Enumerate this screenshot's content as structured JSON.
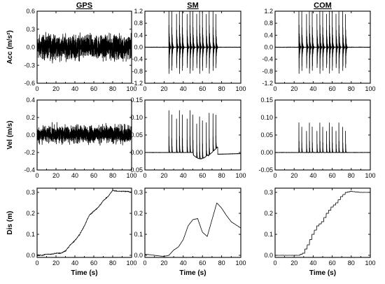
{
  "chart_data": {
    "type": "line",
    "panel_grid": "3x3",
    "panels": [
      {
        "id": "acc-gps",
        "title": "GPS",
        "ylabel": "Acc (m/s²)",
        "xlim": [
          0,
          100
        ],
        "ylim": [
          -0.6,
          0.6
        ],
        "xticks": [
          0,
          20,
          40,
          60,
          80,
          100
        ],
        "yticks": [
          -0.6,
          -0.3,
          0.0,
          0.3,
          0.6
        ],
        "ytick_labels": [
          "-0.6",
          "-0.3",
          "0.0",
          "0.3",
          "0.6"
        ],
        "signal": "dense noise, amplitude ~0.3-0.45 m/s² throughout"
      },
      {
        "id": "acc-sm",
        "title": "SM",
        "ylabel": "",
        "xlim": [
          0,
          100
        ],
        "ylim": [
          -1.2,
          1.2
        ],
        "xticks": [
          0,
          20,
          40,
          60,
          80,
          100
        ],
        "yticks": [
          -1.2,
          -0.8,
          -0.4,
          0.0,
          0.4,
          0.8,
          1.2
        ],
        "ytick_labels": [
          "-1.2",
          "-0.8",
          "-0.4",
          "0.0",
          "0.4",
          "0.8",
          "1.2"
        ],
        "signal": "burst pulses, peaks ~1.2-1.5 m/s²"
      },
      {
        "id": "acc-com",
        "title": "COM",
        "ylabel": "",
        "xlim": [
          0,
          100
        ],
        "ylim": [
          -1.2,
          1.2
        ],
        "xticks": [
          0,
          20,
          40,
          60,
          80,
          100
        ],
        "yticks": [
          -1.2,
          -0.8,
          -0.4,
          0.0,
          0.4,
          0.8,
          1.2
        ],
        "ytick_labels": [
          "-1.2",
          "-0.8",
          "-0.4",
          "0.0",
          "0.4",
          "0.8",
          "1.2"
        ],
        "signal": "burst pulses, peaks ~1.2-1.5 m/s²"
      },
      {
        "id": "vel-gps",
        "title": "",
        "ylabel": "Vel (m/s)",
        "xlim": [
          0,
          100
        ],
        "ylim": [
          -0.4,
          0.4
        ],
        "xticks": [
          0,
          20,
          40,
          60,
          80,
          100
        ],
        "yticks": [
          -0.4,
          -0.2,
          0.0,
          0.2,
          0.4
        ],
        "ytick_labels": [
          "-0.4",
          "-0.2",
          "0.0",
          "0.2",
          "0.4"
        ],
        "signal": "dense noise, amplitude ~0.15-0.25 m/s"
      },
      {
        "id": "vel-sm",
        "title": "",
        "ylabel": "",
        "xlim": [
          0,
          100
        ],
        "ylim": [
          -0.05,
          0.15
        ],
        "xticks": [
          0,
          20,
          40,
          60,
          80,
          100
        ],
        "yticks": [
          -0.05,
          0.0,
          0.05,
          0.1,
          0.15
        ],
        "ytick_labels": [
          "-0.05",
          "0.00",
          "0.05",
          "0.10",
          "0.15"
        ],
        "signal": "velocity spikes to ~0.12 m/s with drifting baseline dipping to ~-0.02"
      },
      {
        "id": "vel-com",
        "title": "",
        "ylabel": "",
        "xlim": [
          0,
          100
        ],
        "ylim": [
          -0.05,
          0.15
        ],
        "xticks": [
          0,
          20,
          40,
          60,
          80,
          100
        ],
        "yticks": [
          -0.05,
          0.0,
          0.05,
          0.1,
          0.15
        ],
        "ytick_labels": [
          "-0.05",
          "0.00",
          "0.05",
          "0.10",
          "0.15"
        ],
        "signal": "velocity spikes to ~0.08-0.09 m/s, flat baseline at 0"
      },
      {
        "id": "dis-gps",
        "title": "",
        "ylabel": "Dis (m)",
        "xlabel": "Time (s)",
        "xlim": [
          0,
          100
        ],
        "ylim": [
          -0.01,
          0.32
        ],
        "xticks": [
          0,
          20,
          40,
          60,
          80,
          100
        ],
        "yticks": [
          0.0,
          0.1,
          0.2,
          0.3
        ],
        "ytick_labels": [
          "0.0",
          "0.1",
          "0.2",
          "0.3"
        ],
        "x": [
          0,
          5,
          10,
          15,
          20,
          25,
          30,
          35,
          40,
          45,
          50,
          55,
          60,
          65,
          70,
          75,
          80,
          85,
          90,
          95,
          100
        ],
        "y": [
          0.0,
          0.0,
          0.005,
          0.005,
          0.01,
          0.01,
          0.02,
          0.05,
          0.07,
          0.1,
          0.14,
          0.19,
          0.21,
          0.23,
          0.26,
          0.28,
          0.31,
          0.305,
          0.305,
          0.305,
          0.3
        ]
      },
      {
        "id": "dis-sm",
        "title": "",
        "ylabel": "",
        "xlabel": "Time (s)",
        "xlim": [
          0,
          100
        ],
        "ylim": [
          -0.01,
          0.32
        ],
        "xticks": [
          0,
          20,
          40,
          60,
          80,
          100
        ],
        "yticks": [
          0.0,
          0.1,
          0.2,
          0.3
        ],
        "ytick_labels": [
          "0.0",
          "0.1",
          "0.2",
          "0.3"
        ],
        "x": [
          0,
          5,
          10,
          15,
          20,
          25,
          30,
          35,
          40,
          45,
          50,
          55,
          60,
          65,
          70,
          75,
          80,
          85,
          90,
          95,
          100
        ],
        "y": [
          0.005,
          0.003,
          0.0,
          -0.003,
          -0.005,
          0.0,
          0.025,
          0.04,
          0.075,
          0.14,
          0.17,
          0.175,
          0.11,
          0.09,
          0.17,
          0.25,
          0.225,
          0.19,
          0.16,
          0.145,
          0.13
        ]
      },
      {
        "id": "dis-com",
        "title": "",
        "ylabel": "",
        "xlabel": "Time (s)",
        "xlim": [
          0,
          100
        ],
        "ylim": [
          -0.01,
          0.32
        ],
        "xticks": [
          0,
          20,
          40,
          60,
          80,
          100
        ],
        "yticks": [
          0.0,
          0.1,
          0.2,
          0.3
        ],
        "ytick_labels": [
          "0.0",
          "0.1",
          "0.2",
          "0.3"
        ],
        "x": [
          0,
          5,
          10,
          15,
          20,
          25,
          30,
          35,
          40,
          45,
          50,
          55,
          60,
          65,
          70,
          75,
          80,
          85,
          90,
          95,
          100
        ],
        "y": [
          0.0,
          0.0,
          0.0,
          0.0,
          0.0,
          0.0,
          0.01,
          0.05,
          0.1,
          0.14,
          0.16,
          0.2,
          0.23,
          0.25,
          0.28,
          0.3,
          0.305,
          0.302,
          0.3,
          0.3,
          0.3
        ]
      }
    ]
  }
}
